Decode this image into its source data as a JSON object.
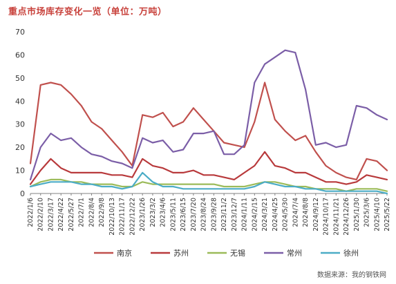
{
  "title": "重点市场库存变化一览（单位：万吨）",
  "source": "数据来源：我的钢铁网",
  "chart_data": {
    "type": "line",
    "title": "重点市场库存变化一览（单位：万吨）",
    "xlabel": "",
    "ylabel": "",
    "ylim": [
      0,
      70
    ],
    "yticks": [
      0,
      10,
      20,
      30,
      40,
      50,
      60,
      70
    ],
    "grid": false,
    "legend_position": "bottom",
    "categories": [
      "2022/1/6",
      "2022/2/10",
      "2022/3/17",
      "2022/4/22",
      "2022/5/27",
      "2022/7/1",
      "2022/8/4",
      "2022/9/8",
      "2022/10/13",
      "2022/11/17",
      "2022/12/22",
      "2023/1/26",
      "2023/3/2",
      "2023/4/6",
      "2023/5/11",
      "2023/6/15",
      "2023/7/20",
      "2023/8/24",
      "2023/9/28",
      "2023/11/2",
      "2023/12/7",
      "2024/1/11",
      "2024/2/15",
      "2024/3/21",
      "2024/4/25",
      "2024/5/30",
      "2024/7/4",
      "2024/8/8",
      "2024/9/12",
      "2024/10/17",
      "2024/11/21",
      "2024/12/26",
      "2025/1/30",
      "2025/3/6",
      "2025/4/10",
      "2025/5/22"
    ],
    "series": [
      {
        "name": "南京",
        "color": "#c0504d",
        "values": [
          13,
          47,
          48,
          47,
          43,
          38,
          31,
          28,
          23,
          18,
          12,
          34,
          33,
          35,
          29,
          31,
          37,
          32,
          27,
          22,
          21,
          20,
          31,
          48,
          32,
          27,
          23,
          25,
          18,
          12,
          9,
          7,
          6,
          15,
          14,
          10
        ]
      },
      {
        "name": "苏州",
        "color": "#b8393b",
        "values": [
          4,
          10,
          15,
          11,
          9,
          9,
          9,
          9,
          8,
          8,
          7,
          15,
          12,
          11,
          9,
          9,
          10,
          8,
          8,
          7,
          6,
          9,
          12,
          18,
          12,
          11,
          9,
          9,
          7,
          5,
          5,
          4,
          5,
          8,
          7,
          6
        ]
      },
      {
        "name": "无锡",
        "color": "#9bbb59",
        "values": [
          3,
          5,
          6,
          6,
          5,
          5,
          4,
          4,
          4,
          3,
          3,
          5,
          4,
          4,
          4,
          4,
          4,
          4,
          4,
          3,
          3,
          3,
          4,
          5,
          5,
          4,
          3,
          3,
          2,
          2,
          2,
          1,
          2,
          2,
          2,
          1
        ]
      },
      {
        "name": "常州",
        "color": "#7b5ea7",
        "values": [
          6,
          20,
          26,
          23,
          24,
          20,
          17,
          16,
          14,
          13,
          11,
          24,
          22,
          23,
          18,
          19,
          26,
          26,
          27,
          17,
          17,
          21,
          48,
          56,
          59,
          62,
          61,
          45,
          21,
          22,
          20,
          21,
          38,
          37,
          34,
          32
        ]
      },
      {
        "name": "徐州",
        "color": "#4bacc6",
        "values": [
          3,
          4,
          5,
          5,
          5,
          4,
          4,
          3,
          3,
          2,
          3,
          9,
          5,
          3,
          3,
          2,
          2,
          2,
          2,
          2,
          2,
          2,
          3,
          5,
          4,
          3,
          3,
          2,
          2,
          1,
          1,
          1,
          1,
          1,
          1,
          0
        ]
      }
    ]
  }
}
